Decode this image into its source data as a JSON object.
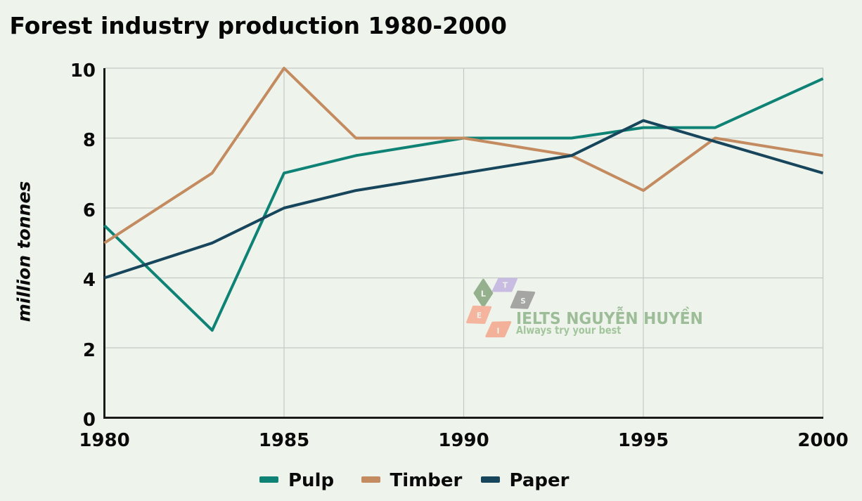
{
  "page": {
    "background_color": "#eef4ec"
  },
  "chart_data": {
    "type": "line",
    "title": "Forest industry production 1980-2000",
    "xlabel": "",
    "ylabel": "million tonnes",
    "xlim": [
      1980,
      2000
    ],
    "ylim": [
      0,
      10
    ],
    "x_ticks": [
      1980,
      1985,
      1990,
      1995,
      2000
    ],
    "y_ticks": [
      0,
      2,
      4,
      6,
      8,
      10
    ],
    "grid": "on",
    "legend_position": "bottom",
    "axis_color": "#1a1a1a",
    "grid_color": "#c4c9c4",
    "series": [
      {
        "name": "Pulp",
        "color": "#0f8276",
        "x": [
          1980,
          1983,
          1985,
          1987,
          1990,
          1993,
          1995,
          1997,
          2000
        ],
        "y": [
          5.5,
          2.5,
          7,
          7.5,
          8,
          8,
          8.3,
          8.3,
          9.7
        ]
      },
      {
        "name": "Timber",
        "color": "#c38b5f",
        "x": [
          1980,
          1983,
          1985,
          1987,
          1990,
          1993,
          1995,
          1997,
          2000
        ],
        "y": [
          5,
          7,
          10,
          8,
          8,
          7.5,
          6.5,
          8,
          7.5
        ]
      },
      {
        "name": "Paper",
        "color": "#16455c",
        "x": [
          1980,
          1983,
          1985,
          1987,
          1990,
          1993,
          1995,
          2000
        ],
        "y": [
          4,
          5,
          6,
          6.5,
          7,
          7.5,
          8.5,
          7
        ]
      }
    ]
  },
  "watermark": {
    "brand": "IELTS NGUYỄN HUYỀN",
    "tagline": "Always try your best",
    "brand_color": "#9dbd98",
    "tagline_color": "#a2c59c",
    "logo_letters": [
      {
        "char": "L",
        "color": "#95b08d"
      },
      {
        "char": "T",
        "color": "#c9bce3"
      },
      {
        "char": "S",
        "color": "#a5a5a3"
      },
      {
        "char": "E",
        "color": "#f4b49e"
      },
      {
        "char": "I",
        "color": "#f4b19a"
      }
    ]
  }
}
